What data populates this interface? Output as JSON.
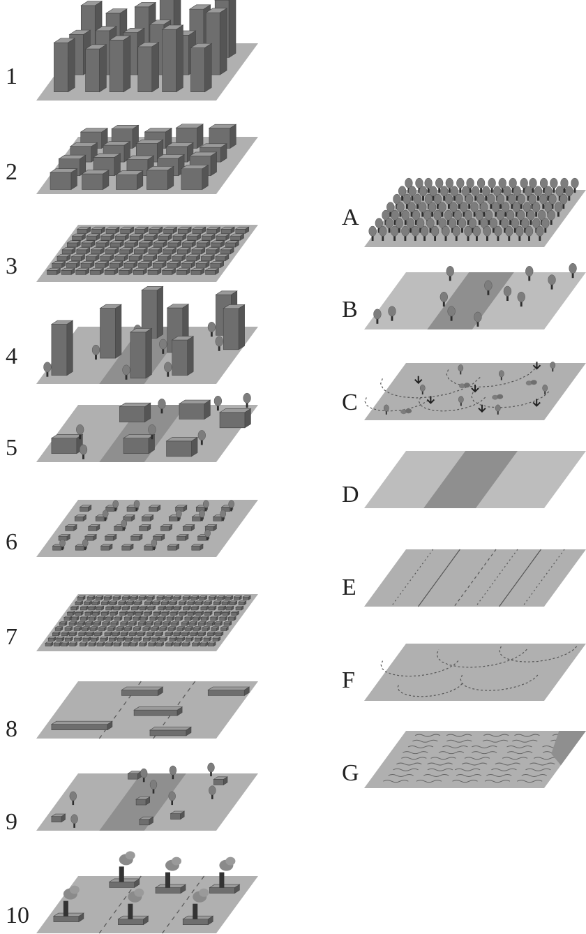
{
  "left_panels": [
    {
      "label": "1",
      "pattern": "compact-high-rise"
    },
    {
      "label": "2",
      "pattern": "compact-mid-rise"
    },
    {
      "label": "3",
      "pattern": "compact-low-rise"
    },
    {
      "label": "4",
      "pattern": "open-high-rise"
    },
    {
      "label": "5",
      "pattern": "open-mid-rise"
    },
    {
      "label": "6",
      "pattern": "open-low-rise"
    },
    {
      "label": "7",
      "pattern": "lightweight-low-rise"
    },
    {
      "label": "8",
      "pattern": "large-low-rise"
    },
    {
      "label": "9",
      "pattern": "sparsely-built"
    },
    {
      "label": "10",
      "pattern": "heavy-industry"
    }
  ],
  "right_panels": [
    {
      "label": "A",
      "pattern": "dense-trees"
    },
    {
      "label": "B",
      "pattern": "scattered-trees"
    },
    {
      "label": "C",
      "pattern": "bush-scrub"
    },
    {
      "label": "D",
      "pattern": "low-plants"
    },
    {
      "label": "E",
      "pattern": "bare-rock-or-paved"
    },
    {
      "label": "F",
      "pattern": "bare-soil-or-sand"
    },
    {
      "label": "G",
      "pattern": "water"
    }
  ],
  "colors": {
    "ground": "#b0b0b0",
    "ground_dark": "#8f8f8f",
    "building_front": "#6e6e6e",
    "building_side": "#555555",
    "building_top": "#9a9a9a",
    "tree_crown": "#7d7d7d",
    "trunk": "#2e2e2e"
  }
}
